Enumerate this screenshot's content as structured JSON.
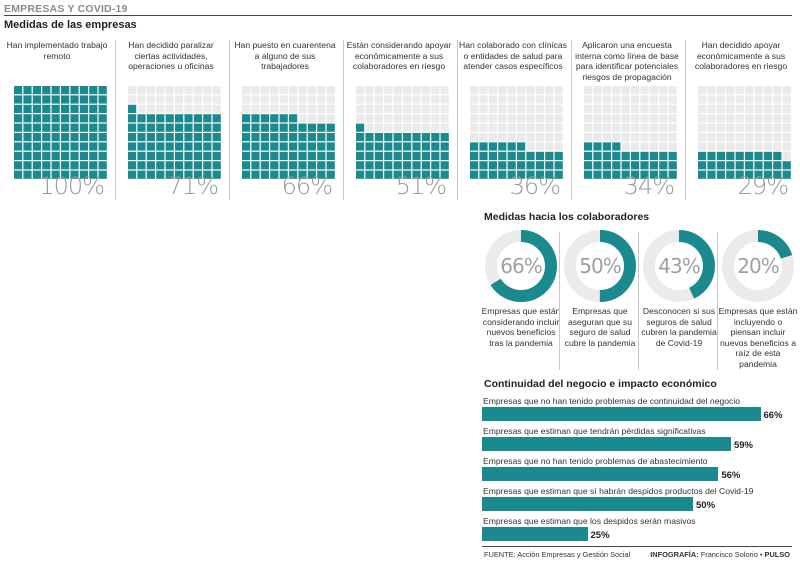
{
  "header": {
    "kicker": "EMPRESAS Y COVID-19"
  },
  "chart_data": [
    {
      "type": "waffle",
      "title": "Medidas de las empresas",
      "grid": {
        "rows": 10,
        "cols": 10
      },
      "categories": [
        "Han implementado trabajo remoto",
        "Han decidido paralizar ciertas actividades, operaciones u oficinas",
        "Han puesto en cuarentena a alguno de sus trabajadores",
        "Están considerando apoyar económicamente a sus colaboradores en riesgo",
        "Han colaborado con clínicas o entidades de salud para atender casos específicos",
        "Aplicaron una encuesta interna como línea de base para identificar potenciales riesgos de propagación",
        "Han decidido apoyar económicamente a sus colaboradores en riesgo"
      ],
      "values": [
        100,
        71,
        66,
        51,
        36,
        34,
        29
      ],
      "labels": [
        "100%",
        "71%",
        "66%",
        "51%",
        "36%",
        "34%",
        "29%"
      ],
      "colors": {
        "filled": "#1a8a8f",
        "empty": "#ebebeb"
      }
    },
    {
      "type": "donut",
      "title": "Medidas hacia los colaboradores",
      "categories": [
        "Empresas que están considerando incluir nuevos beneficios tras la pandemia",
        "Empresas que aseguran que su seguro de salud cubre la pandemia",
        "Desconocen si sus seguros de salud cubren la pandemia de Covid-19",
        "Empresas que están incluyendo o piensan incluir nuevos beneficios a raíz de esta pandemia"
      ],
      "values": [
        66,
        50,
        43,
        20
      ],
      "labels": [
        "66%",
        "50%",
        "43%",
        "20%"
      ],
      "colors": {
        "filled": "#1a8a8f",
        "empty": "#ebebeb"
      }
    },
    {
      "type": "bar",
      "orientation": "horizontal",
      "title": "Continuidad del negocio e impacto económico",
      "categories": [
        "Empresas que no han tenido problemas de continuidad del negocio",
        "Empresas que estiman que tendrán pérdidas significativas",
        "Empresas que no han tenido problemas de abastecimiento",
        "Empresas que estiman que sí habrán despidos productos del Covid-19",
        "Empresas que estiman que los despidos serán masivos"
      ],
      "values": [
        66,
        59,
        56,
        50,
        25
      ],
      "labels": [
        "66%",
        "59%",
        "56%",
        "50%",
        "25%"
      ],
      "xlim": [
        0,
        100
      ],
      "color": "#1a8a8f"
    }
  ],
  "footer": {
    "source": "FUENTE: Acción Empresas y Gestión Social",
    "credit_label": "INFOGRAFÍA:",
    "credit_name": "Francisco Solorio",
    "credit_sep": "•",
    "credit_outlet": "PULSO"
  }
}
